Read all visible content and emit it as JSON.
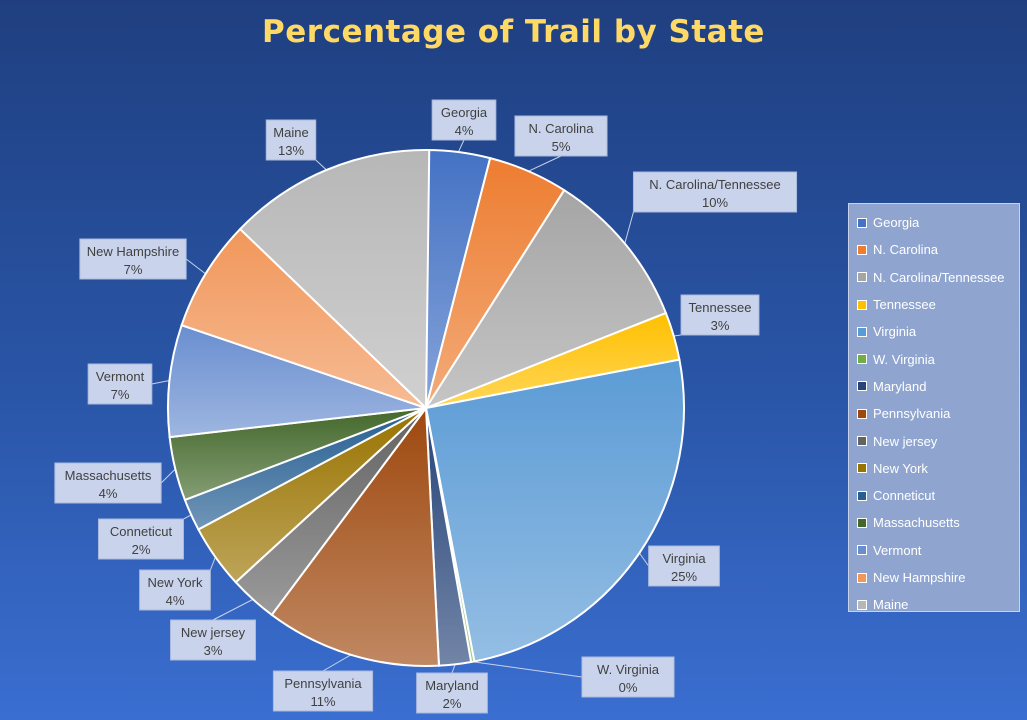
{
  "chart_data": {
    "type": "pie",
    "title": "Percentage of Trail by State",
    "categories": [
      "Georgia",
      "N. Carolina",
      "N. Carolina/Tennessee",
      "Tennessee",
      "Virginia",
      "W. Virginia",
      "Maryland",
      "Pennsylvania",
      "New jersey",
      "New York",
      "Conneticut",
      "Massachusetts",
      "Vermont",
      "New Hampshire",
      "Maine"
    ],
    "values": [
      4,
      5,
      10,
      3,
      25,
      0,
      2,
      11,
      3,
      4,
      2,
      4,
      7,
      7,
      13
    ],
    "value_labels": [
      "4%",
      "5%",
      "10%",
      "3%",
      "25%",
      "0%",
      "2%",
      "11%",
      "3%",
      "4%",
      "2%",
      "4%",
      "7%",
      "7%",
      "13%"
    ],
    "colors": [
      "#4472c4",
      "#ed7d31",
      "#a5a5a5",
      "#ffc000",
      "#5b9bd5",
      "#70ad47",
      "#264478",
      "#9e480e",
      "#636363",
      "#997300",
      "#255e91",
      "#43682b",
      "#698ed0",
      "#f1975a",
      "#b7b7b7"
    ],
    "legend_position": "right"
  }
}
